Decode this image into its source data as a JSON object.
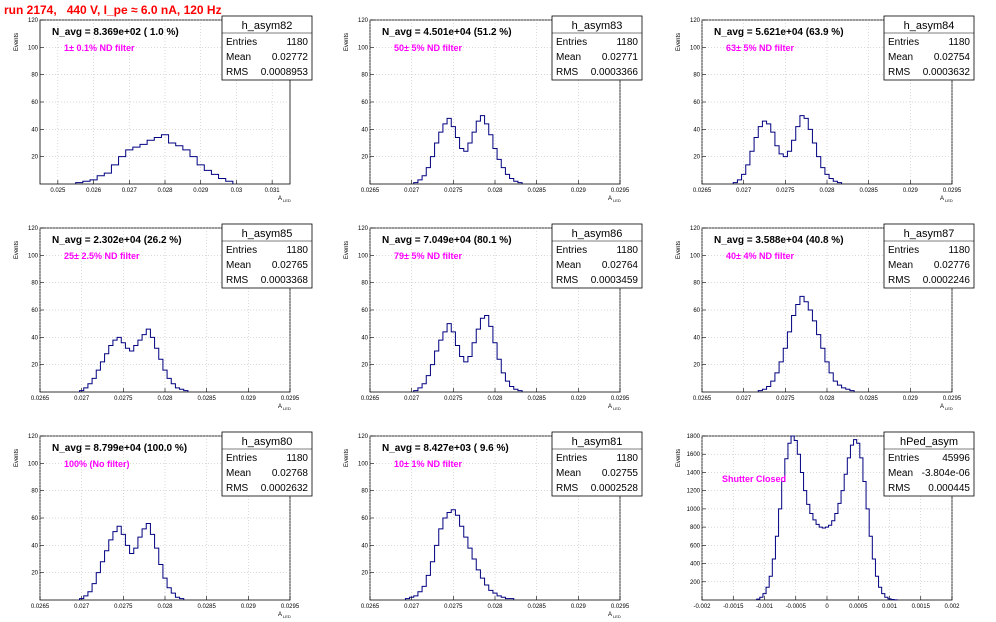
{
  "page_title": "run 2174,   440 V, I_pe ≈ 6.0 nA, 120 Hz",
  "chart_data": [
    {
      "type": "histogram",
      "name": "h_asym82",
      "n_avg": "N_avg = 8.369e+02 ( 1.0 %)",
      "filter": "1± 0.1% ND filter",
      "ylabel": "Events",
      "xlabel": "A_LED",
      "stats": {
        "Entries": "1180",
        "Mean": "0.02772",
        "RMS": "0.0008953"
      },
      "xlim": [
        0.0245,
        0.0315
      ],
      "ylim": [
        0,
        120
      ],
      "xticks": [
        "0.025",
        "0.026",
        "0.027",
        "0.028",
        "0.029",
        "0.03",
        "0.031"
      ],
      "xtick_values": [
        0.025,
        0.026,
        0.027,
        0.028,
        0.029,
        0.03,
        0.031
      ],
      "yticks": [
        20,
        40,
        60,
        80,
        100,
        120
      ],
      "x": [
        0.0256,
        0.0258,
        0.026,
        0.0262,
        0.0264,
        0.0266,
        0.0268,
        0.027,
        0.0272,
        0.0274,
        0.0276,
        0.0278,
        0.028,
        0.0282,
        0.0284,
        0.0286,
        0.0288,
        0.029,
        0.0292,
        0.0294,
        0.0296,
        0.0298
      ],
      "values": [
        1,
        2,
        3,
        6,
        8,
        14,
        20,
        25,
        27,
        29,
        32,
        34,
        36,
        30,
        28,
        25,
        20,
        14,
        10,
        7,
        4,
        2
      ]
    },
    {
      "type": "histogram",
      "name": "h_asym83",
      "n_avg": "N_avg = 4.501e+04 (51.2 %)",
      "filter": "50± 5% ND filter",
      "ylabel": "Events",
      "xlabel": "A_LED",
      "stats": {
        "Entries": "1180",
        "Mean": "0.02771",
        "RMS": "0.0003366"
      },
      "xlim": [
        0.0265,
        0.0295
      ],
      "ylim": [
        0,
        120
      ],
      "xticks": [
        "0.0265",
        "0.027",
        "0.0275",
        "0.028",
        "0.0285",
        "0.029",
        "0.0295"
      ],
      "xtick_values": [
        0.0265,
        0.027,
        0.0275,
        0.028,
        0.0285,
        0.029,
        0.0295
      ],
      "yticks": [
        20,
        40,
        60,
        80,
        100,
        120
      ],
      "x": [
        0.02705,
        0.0271,
        0.02715,
        0.0272,
        0.02725,
        0.0273,
        0.02735,
        0.0274,
        0.02745,
        0.0275,
        0.02755,
        0.0276,
        0.02765,
        0.0277,
        0.02775,
        0.0278,
        0.02785,
        0.0279,
        0.02795,
        0.028,
        0.02805,
        0.0281,
        0.02815,
        0.0282,
        0.02825,
        0.0283
      ],
      "values": [
        1,
        3,
        6,
        12,
        20,
        30,
        38,
        44,
        48,
        42,
        34,
        26,
        24,
        30,
        38,
        46,
        50,
        44,
        36,
        26,
        18,
        12,
        7,
        4,
        2,
        1
      ]
    },
    {
      "type": "histogram",
      "name": "h_asym84",
      "n_avg": "N_avg = 5.621e+04 (63.9 %)",
      "filter": "63± 5% ND filter",
      "ylabel": "Events",
      "xlabel": "A_LED",
      "stats": {
        "Entries": "1180",
        "Mean": "0.02754",
        "RMS": "0.0003632"
      },
      "xlim": [
        0.0265,
        0.0295
      ],
      "ylim": [
        0,
        120
      ],
      "xticks": [
        "0.0265",
        "0.027",
        "0.0275",
        "0.028",
        "0.0285",
        "0.029",
        "0.0295"
      ],
      "xtick_values": [
        0.0265,
        0.027,
        0.0275,
        0.028,
        0.0285,
        0.029,
        0.0295
      ],
      "yticks": [
        20,
        40,
        60,
        80,
        100,
        120
      ],
      "x": [
        0.0269,
        0.02695,
        0.027,
        0.02705,
        0.0271,
        0.02715,
        0.0272,
        0.02725,
        0.0273,
        0.02735,
        0.0274,
        0.02745,
        0.0275,
        0.02755,
        0.0276,
        0.02765,
        0.0277,
        0.02775,
        0.0278,
        0.02785,
        0.0279,
        0.02795,
        0.028,
        0.02805,
        0.0281,
        0.02815
      ],
      "values": [
        1,
        3,
        7,
        14,
        24,
        34,
        42,
        46,
        44,
        38,
        28,
        22,
        20,
        24,
        32,
        42,
        50,
        48,
        40,
        30,
        20,
        12,
        7,
        4,
        2,
        1
      ]
    },
    {
      "type": "histogram",
      "name": "h_asym85",
      "n_avg": "N_avg = 2.302e+04 (26.2 %)",
      "filter": "25± 2.5% ND filter",
      "ylabel": "Events",
      "xlabel": "A_LED",
      "stats": {
        "Entries": "1180",
        "Mean": "0.02765",
        "RMS": "0.0003368"
      },
      "xlim": [
        0.0265,
        0.0295
      ],
      "ylim": [
        0,
        120
      ],
      "xticks": [
        "0.0265",
        "0.027",
        "0.0275",
        "0.028",
        "0.0285",
        "0.029",
        "0.0295"
      ],
      "xtick_values": [
        0.0265,
        0.027,
        0.0275,
        0.028,
        0.0285,
        0.029,
        0.0295
      ],
      "yticks": [
        20,
        40,
        60,
        80,
        100,
        120
      ],
      "x": [
        0.027,
        0.02705,
        0.0271,
        0.02715,
        0.0272,
        0.02725,
        0.0273,
        0.02735,
        0.0274,
        0.02745,
        0.0275,
        0.02755,
        0.0276,
        0.02765,
        0.0277,
        0.02775,
        0.0278,
        0.02785,
        0.0279,
        0.02795,
        0.028,
        0.02805,
        0.0281,
        0.02815,
        0.0282,
        0.02825
      ],
      "values": [
        1,
        3,
        6,
        10,
        16,
        22,
        28,
        34,
        38,
        40,
        36,
        32,
        30,
        34,
        38,
        42,
        46,
        40,
        32,
        24,
        16,
        10,
        6,
        3,
        2,
        1
      ]
    },
    {
      "type": "histogram",
      "name": "h_asym86",
      "n_avg": "N_avg = 7.049e+04 (80.1 %)",
      "filter": "79± 5% ND filter",
      "ylabel": "Events",
      "xlabel": "A_LED",
      "stats": {
        "Entries": "1180",
        "Mean": "0.02764",
        "RMS": "0.0003459"
      },
      "xlim": [
        0.0265,
        0.0295
      ],
      "ylim": [
        0,
        120
      ],
      "xticks": [
        "0.0265",
        "0.027",
        "0.0275",
        "0.028",
        "0.0285",
        "0.029",
        "0.0295"
      ],
      "xtick_values": [
        0.0265,
        0.027,
        0.0275,
        0.028,
        0.0285,
        0.029,
        0.0295
      ],
      "yticks": [
        20,
        40,
        60,
        80,
        100,
        120
      ],
      "x": [
        0.02705,
        0.0271,
        0.02715,
        0.0272,
        0.02725,
        0.0273,
        0.02735,
        0.0274,
        0.02745,
        0.0275,
        0.02755,
        0.0276,
        0.02765,
        0.0277,
        0.02775,
        0.0278,
        0.02785,
        0.0279,
        0.02795,
        0.028,
        0.02805,
        0.0281,
        0.02815,
        0.0282,
        0.02825,
        0.0283
      ],
      "values": [
        1,
        3,
        6,
        12,
        20,
        30,
        38,
        44,
        50,
        44,
        34,
        26,
        22,
        26,
        36,
        46,
        54,
        56,
        48,
        36,
        24,
        14,
        8,
        4,
        2,
        1
      ]
    },
    {
      "type": "histogram",
      "name": "h_asym87",
      "n_avg": "N_avg = 3.588e+04 (40.8 %)",
      "filter": "40± 4% ND filter",
      "ylabel": "Events",
      "xlabel": "A_LED",
      "stats": {
        "Entries": "1180",
        "Mean": "0.02776",
        "RMS": "0.0002246"
      },
      "xlim": [
        0.0265,
        0.0295
      ],
      "ylim": [
        0,
        120
      ],
      "xticks": [
        "0.0265",
        "0.027",
        "0.0275",
        "0.028",
        "0.0285",
        "0.029",
        "0.0295"
      ],
      "xtick_values": [
        0.0265,
        0.027,
        0.0275,
        0.028,
        0.0285,
        0.029,
        0.0295
      ],
      "yticks": [
        20,
        40,
        60,
        80,
        100,
        120
      ],
      "x": [
        0.0272,
        0.02725,
        0.0273,
        0.02735,
        0.0274,
        0.02745,
        0.0275,
        0.02755,
        0.0276,
        0.02765,
        0.0277,
        0.02775,
        0.0278,
        0.02785,
        0.0279,
        0.02795,
        0.028,
        0.02805,
        0.0281,
        0.02815,
        0.0282,
        0.02825,
        0.0283
      ],
      "values": [
        1,
        2,
        4,
        8,
        14,
        22,
        32,
        44,
        56,
        64,
        70,
        66,
        60,
        52,
        42,
        32,
        22,
        14,
        8,
        5,
        3,
        2,
        1
      ]
    },
    {
      "type": "histogram",
      "name": "h_asym80",
      "n_avg": "N_avg = 8.799e+04 (100.0 %)",
      "filter": "100% (No filter)",
      "ylabel": "Events",
      "xlabel": "A_LED",
      "stats": {
        "Entries": "1180",
        "Mean": "0.02768",
        "RMS": "0.0002632"
      },
      "xlim": [
        0.0265,
        0.0295
      ],
      "ylim": [
        0,
        120
      ],
      "xticks": [
        "0.0265",
        "0.027",
        "0.0275",
        "0.028",
        "0.0285",
        "0.029",
        "0.0295"
      ],
      "xtick_values": [
        0.0265,
        0.027,
        0.0275,
        0.028,
        0.0285,
        0.029,
        0.0295
      ],
      "yticks": [
        20,
        40,
        60,
        80,
        100,
        120
      ],
      "x": [
        0.027,
        0.02705,
        0.0271,
        0.02715,
        0.0272,
        0.02725,
        0.0273,
        0.02735,
        0.0274,
        0.02745,
        0.0275,
        0.02755,
        0.0276,
        0.02765,
        0.0277,
        0.02775,
        0.0278,
        0.02785,
        0.0279,
        0.02795,
        0.028,
        0.02805,
        0.0281,
        0.02815,
        0.0282
      ],
      "values": [
        1,
        3,
        6,
        12,
        20,
        28,
        36,
        44,
        50,
        54,
        48,
        40,
        34,
        38,
        46,
        52,
        56,
        48,
        38,
        26,
        16,
        9,
        5,
        2,
        1
      ]
    },
    {
      "type": "histogram",
      "name": "h_asym81",
      "n_avg": "N_avg = 8.427e+03 ( 9.6 %)",
      "filter": "10± 1% ND filter",
      "ylabel": "Events",
      "xlabel": "A_LED",
      "stats": {
        "Entries": "1180",
        "Mean": "0.02755",
        "RMS": "0.0002528"
      },
      "xlim": [
        0.0265,
        0.0295
      ],
      "ylim": [
        0,
        120
      ],
      "xticks": [
        "0.0265",
        "0.027",
        "0.0275",
        "0.028",
        "0.0285",
        "0.029",
        "0.0295"
      ],
      "xtick_values": [
        0.0265,
        0.027,
        0.0275,
        0.028,
        0.0285,
        0.029,
        0.0295
      ],
      "yticks": [
        20,
        40,
        60,
        80,
        100,
        120
      ],
      "x": [
        0.02695,
        0.027,
        0.02705,
        0.0271,
        0.02715,
        0.0272,
        0.02725,
        0.0273,
        0.02735,
        0.0274,
        0.02745,
        0.0275,
        0.02755,
        0.0276,
        0.02765,
        0.0277,
        0.02775,
        0.0278,
        0.02785,
        0.0279,
        0.02795,
        0.028,
        0.02805,
        0.0281,
        0.02815,
        0.0282
      ],
      "values": [
        1,
        2,
        3,
        6,
        10,
        18,
        28,
        40,
        52,
        60,
        64,
        66,
        62,
        54,
        46,
        38,
        30,
        22,
        16,
        11,
        7,
        5,
        3,
        2,
        1,
        1
      ]
    },
    {
      "type": "histogram",
      "name": "hPed_asym",
      "n_avg": "",
      "filter": "Shutter Closed",
      "ylabel": "Events",
      "xlabel": "",
      "stats": {
        "Entries": "45996",
        "Mean": "-3.804e-06",
        "RMS": "0.000445"
      },
      "xlim": [
        -0.002,
        0.002
      ],
      "ylim": [
        0,
        1800
      ],
      "xticks": [
        "-0.002",
        "-0.0015",
        "-0.001",
        "-0.0005",
        "0",
        "0.0005",
        "0.001",
        "0.0015",
        "0.002"
      ],
      "xtick_values": [
        -0.002,
        -0.0015,
        -0.001,
        -0.0005,
        0,
        0.0005,
        0.001,
        0.0015,
        0.002
      ],
      "yticks": [
        200,
        400,
        600,
        800,
        1000,
        1200,
        1400,
        1600,
        1800
      ],
      "x": [
        -0.0011,
        -0.00105,
        -0.001,
        -0.00095,
        -0.0009,
        -0.00085,
        -0.0008,
        -0.00075,
        -0.0007,
        -0.00065,
        -0.0006,
        -0.00055,
        -0.0005,
        -0.00045,
        -0.0004,
        -0.00035,
        -0.0003,
        -0.00025,
        -0.0002,
        -0.00015,
        -0.0001,
        -5e-05,
        0.0,
        5e-05,
        0.0001,
        0.00015,
        0.0002,
        0.00025,
        0.0003,
        0.00035,
        0.0004,
        0.00045,
        0.0005,
        0.00055,
        0.0006,
        0.00065,
        0.0007,
        0.00075,
        0.0008,
        0.00085,
        0.0009,
        0.00095,
        0.001,
        0.00105,
        0.0011
      ],
      "values": [
        10,
        30,
        70,
        140,
        260,
        450,
        700,
        1000,
        1300,
        1550,
        1720,
        1800,
        1750,
        1600,
        1400,
        1200,
        1050,
        950,
        880,
        830,
        800,
        790,
        800,
        820,
        870,
        950,
        1060,
        1200,
        1380,
        1560,
        1700,
        1760,
        1720,
        1560,
        1300,
        1000,
        700,
        450,
        260,
        140,
        70,
        30,
        12,
        5,
        2
      ]
    }
  ]
}
